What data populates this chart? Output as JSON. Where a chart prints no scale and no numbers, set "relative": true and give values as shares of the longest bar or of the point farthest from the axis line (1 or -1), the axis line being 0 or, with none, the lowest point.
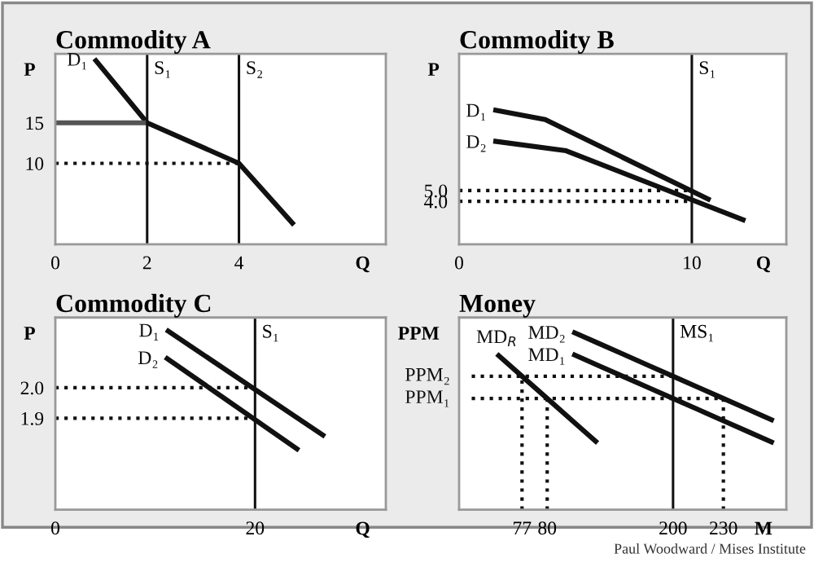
{
  "chart_data": [
    {
      "type": "line",
      "title": "Commodity A",
      "xlabel": "Q",
      "ylabel": "P",
      "xlim": [
        0,
        7.2
      ],
      "ylim": [
        0,
        23.5
      ],
      "xticks": [
        0,
        2,
        4
      ],
      "yticks": [
        10,
        15
      ],
      "grid": false,
      "legend": false,
      "marker": "none",
      "series": [
        {
          "name": "D₁",
          "color": "#111111",
          "line_style": "solid",
          "x": [
            0.85,
            2,
            4,
            5.2
          ],
          "values": [
            22.9,
            15,
            10,
            2.4
          ]
        },
        {
          "color": "#555555",
          "line_style": "solid",
          "x": [
            0,
            2
          ],
          "values": [
            15,
            15
          ]
        },
        {
          "color": "#111111",
          "line_style": "dotted",
          "x": [
            0,
            4
          ],
          "values": [
            10,
            10
          ]
        }
      ],
      "ref_lines": [
        {
          "axis": "x",
          "value": 2,
          "label": "S₁",
          "color": "#111111"
        },
        {
          "axis": "x",
          "value": 4,
          "label": "S₂",
          "color": "#111111"
        }
      ]
    },
    {
      "type": "line",
      "title": "Commodity B",
      "xlabel": "Q",
      "ylabel": "P",
      "xlim": [
        0,
        14.06
      ],
      "ylim": [
        0,
        17.7
      ],
      "xticks": [
        0,
        10
      ],
      "yticks": [
        {
          "value": 4.0,
          "label": "4.0"
        },
        {
          "value": 5.0,
          "label": "5.0"
        }
      ],
      "grid": false,
      "legend": false,
      "marker": "none",
      "series": [
        {
          "name": "D₁",
          "color": "#111111",
          "line_style": "solid",
          "x": [
            1.47,
            3.7,
            10.8
          ],
          "values": [
            12.5,
            11.6,
            4.1
          ]
        },
        {
          "name": "D₂",
          "color": "#111111",
          "line_style": "solid",
          "x": [
            1.47,
            4.6,
            12.3
          ],
          "values": [
            9.6,
            8.7,
            2.2
          ]
        },
        {
          "color": "#111111",
          "line_style": "dotted",
          "x": [
            0,
            10
          ],
          "values": [
            5.0,
            5.0
          ]
        },
        {
          "color": "#111111",
          "line_style": "dotted",
          "x": [
            0,
            10
          ],
          "values": [
            4.0,
            4.0
          ]
        }
      ],
      "ref_lines": [
        {
          "axis": "x",
          "value": 10,
          "label": "S₁",
          "color": "#111111"
        }
      ]
    },
    {
      "type": "line",
      "title": "Commodity C",
      "xlabel": "Q",
      "ylabel": "P",
      "xlim": [
        0,
        33.1
      ],
      "ylim": [
        1.6,
        2.23
      ],
      "xticks": [
        0,
        20
      ],
      "yticks": [
        {
          "value": 1.9,
          "label": "1.9"
        },
        {
          "value": 2.0,
          "label": "2.0"
        }
      ],
      "grid": false,
      "legend": false,
      "marker": "none",
      "series": [
        {
          "name": "D₁",
          "color": "#111111",
          "line_style": "solid",
          "x": [
            11.1,
            27.0
          ],
          "values": [
            2.19,
            1.84
          ]
        },
        {
          "name": "D₂",
          "color": "#111111",
          "line_style": "solid",
          "x": [
            11.0,
            24.4
          ],
          "values": [
            2.1,
            1.795
          ]
        },
        {
          "color": "#111111",
          "line_style": "dotted",
          "x": [
            0,
            20
          ],
          "values": [
            2.0,
            2.0
          ]
        },
        {
          "color": "#111111",
          "line_style": "dotted",
          "x": [
            0,
            20
          ],
          "values": [
            1.9,
            1.9
          ]
        }
      ],
      "ref_lines": [
        {
          "axis": "x",
          "value": 20,
          "label": "S₁",
          "color": "#111111"
        }
      ]
    },
    {
      "type": "line",
      "title": "Money",
      "xlabel": "M",
      "ylabel": "PPM",
      "relative": true,
      "grid": false,
      "legend": false,
      "marker": "none",
      "categories": [
        null,
        null,
        "77",
        "80",
        null,
        null,
        null,
        null,
        "200",
        null,
        "230",
        null,
        null
      ],
      "series": [
        {
          "name": "MD₁",
          "color": "#111111",
          "line_style": "solid",
          "values": [
            null,
            null,
            null,
            null,
            0.875,
            0.8125,
            0.75,
            0.6875,
            0.625,
            0.5625,
            0.5,
            0.4375,
            0.375
          ]
        },
        {
          "name": "MD₂",
          "color": "#111111",
          "line_style": "solid",
          "values": [
            null,
            null,
            null,
            null,
            1.0,
            0.9375,
            0.875,
            0.8125,
            0.75,
            0.6875,
            0.625,
            0.5625,
            0.5
          ]
        },
        {
          "name": "MD$_{R}$",
          "color": "#111111",
          "line_style": "solid",
          "values": [
            null,
            0.875,
            0.75,
            0.625,
            0.5,
            0.375,
            null,
            null,
            null,
            null,
            null,
            null,
            null
          ]
        },
        {
          "name": "PPM₂",
          "color": "#111111",
          "line_style": "dotted",
          "values": [
            0.75,
            0.75,
            0.75,
            0.75,
            0.75,
            0.75,
            0.75,
            0.75,
            0.75,
            null,
            null,
            null,
            null
          ]
        },
        {
          "name": "PPM₁",
          "color": "#111111",
          "line_style": "dotted",
          "values": [
            0.625,
            0.625,
            0.625,
            0.625,
            0.625,
            0.625,
            0.625,
            0.625,
            0.625,
            0.625,
            0.625,
            null,
            null
          ]
        },
        {
          "color": "#111111",
          "line_style": "dotted",
          "x": [
            "77",
            "77"
          ],
          "values": [
            0,
            0.75
          ]
        },
        {
          "color": "#111111",
          "line_style": "dotted",
          "x": [
            "80",
            "80"
          ],
          "values": [
            0,
            0.625
          ]
        },
        {
          "color": "#111111",
          "line_style": "dotted",
          "x": [
            "230",
            "230"
          ],
          "values": [
            0,
            0.625
          ]
        }
      ],
      "ref_lines": [
        {
          "axis": "x",
          "value": "200",
          "label": "MS₁",
          "color": "#111111"
        }
      ],
      "annotations": [
        "Paul Woodward / Mises Institute"
      ]
    }
  ]
}
